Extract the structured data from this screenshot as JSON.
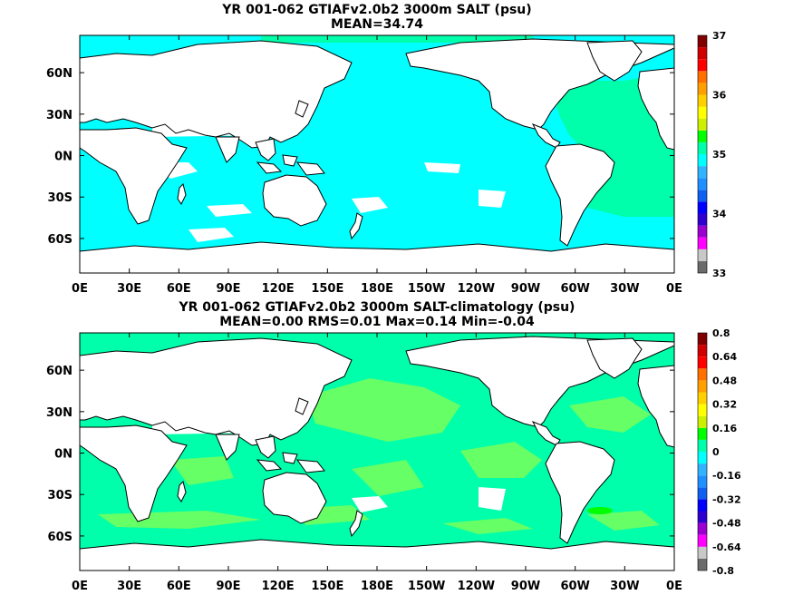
{
  "chart_data": [
    {
      "type": "heatmap",
      "title": "YR 001-062 GTIAFv2.0b2 3000m SALT (psu)",
      "subtitle": "MEAN=34.74",
      "x_tick_labels": [
        "0E",
        "30E",
        "60E",
        "90E",
        "120E",
        "150E",
        "180E",
        "150W",
        "120W",
        "90W",
        "60W",
        "30W",
        "0E"
      ],
      "y_tick_labels": [
        "60N",
        "30N",
        "0N",
        "30S",
        "60S"
      ],
      "x_ticks_lon": [
        0,
        30,
        60,
        90,
        120,
        150,
        180,
        210,
        240,
        270,
        300,
        330,
        360
      ],
      "y_ticks_lat": [
        60,
        30,
        0,
        -30,
        -60
      ],
      "xlim": [
        0,
        360
      ],
      "ylim": [
        -85,
        87
      ],
      "colorbar": {
        "range": [
          33,
          37
        ],
        "tick_labels": [
          "37",
          "36",
          "35",
          "34",
          "33"
        ],
        "tick_values": [
          37,
          36,
          35,
          34,
          33
        ],
        "colors": [
          "#6b6b6b",
          "#c8c8c8",
          "#ff00ff",
          "#9b00d0",
          "#3000d0",
          "#0000ff",
          "#0f5ff0",
          "#1e90ff",
          "#30b4ff",
          "#00ffff",
          "#00ffaa",
          "#00ff00",
          "#cdf000",
          "#ffff00",
          "#ffd000",
          "#ffa000",
          "#ff7000",
          "#ff0000",
          "#d00000",
          "#800000"
        ]
      },
      "fields": [
        {
          "name": "open ocean",
          "value": 34.9,
          "color": "#00ffff"
        },
        {
          "name": "north atlantic",
          "value": 35.0,
          "color": "#00ffaa"
        },
        {
          "name": "land",
          "color": "#ffffff"
        }
      ]
    },
    {
      "type": "heatmap",
      "title": "YR 001-062 GTIAFv2.0b2 3000m SALT-climatology (psu)",
      "subtitle": "MEAN=0.00   RMS=0.01   Max=0.14   Min=-0.04",
      "x_tick_labels": [
        "0E",
        "30E",
        "60E",
        "90E",
        "120E",
        "150E",
        "180E",
        "150W",
        "120W",
        "90W",
        "60W",
        "30W",
        "0E"
      ],
      "y_tick_labels": [
        "60N",
        "30N",
        "0N",
        "30S",
        "60S"
      ],
      "x_ticks_lon": [
        0,
        30,
        60,
        90,
        120,
        150,
        180,
        210,
        240,
        270,
        300,
        330,
        360
      ],
      "y_ticks_lat": [
        60,
        30,
        0,
        -30,
        -60
      ],
      "xlim": [
        0,
        360
      ],
      "ylim": [
        -85,
        87
      ],
      "colorbar": {
        "range": [
          -0.8,
          0.8
        ],
        "tick_labels": [
          "0.8",
          "0.64",
          "0.48",
          "0.32",
          "0.16",
          "0",
          "-0.16",
          "-0.32",
          "-0.48",
          "-0.64",
          "-0.8"
        ],
        "tick_values": [
          0.8,
          0.64,
          0.48,
          0.32,
          0.16,
          0,
          -0.16,
          -0.32,
          -0.48,
          -0.64,
          -0.8
        ],
        "colors": [
          "#6b6b6b",
          "#c8c8c8",
          "#ff00ff",
          "#9b00d0",
          "#3000d0",
          "#0000ff",
          "#0f5ff0",
          "#1e90ff",
          "#30b4ff",
          "#00ffff",
          "#00ffaa",
          "#00ff00",
          "#cdf000",
          "#ffff00",
          "#ffd000",
          "#ffa000",
          "#ff7000",
          "#ff0000",
          "#d00000",
          "#800000"
        ]
      },
      "stats": {
        "MEAN": 0.0,
        "RMS": 0.01,
        "Max": 0.14,
        "Min": -0.04
      },
      "fields": [
        {
          "name": "near zero",
          "value": 0.0,
          "color": "#00ffaa"
        },
        {
          "name": "small positive",
          "value": 0.05,
          "color": "#66ff66"
        },
        {
          "name": "peak",
          "value": 0.14,
          "color": "#00ff00"
        },
        {
          "name": "land",
          "color": "#ffffff"
        }
      ]
    }
  ]
}
